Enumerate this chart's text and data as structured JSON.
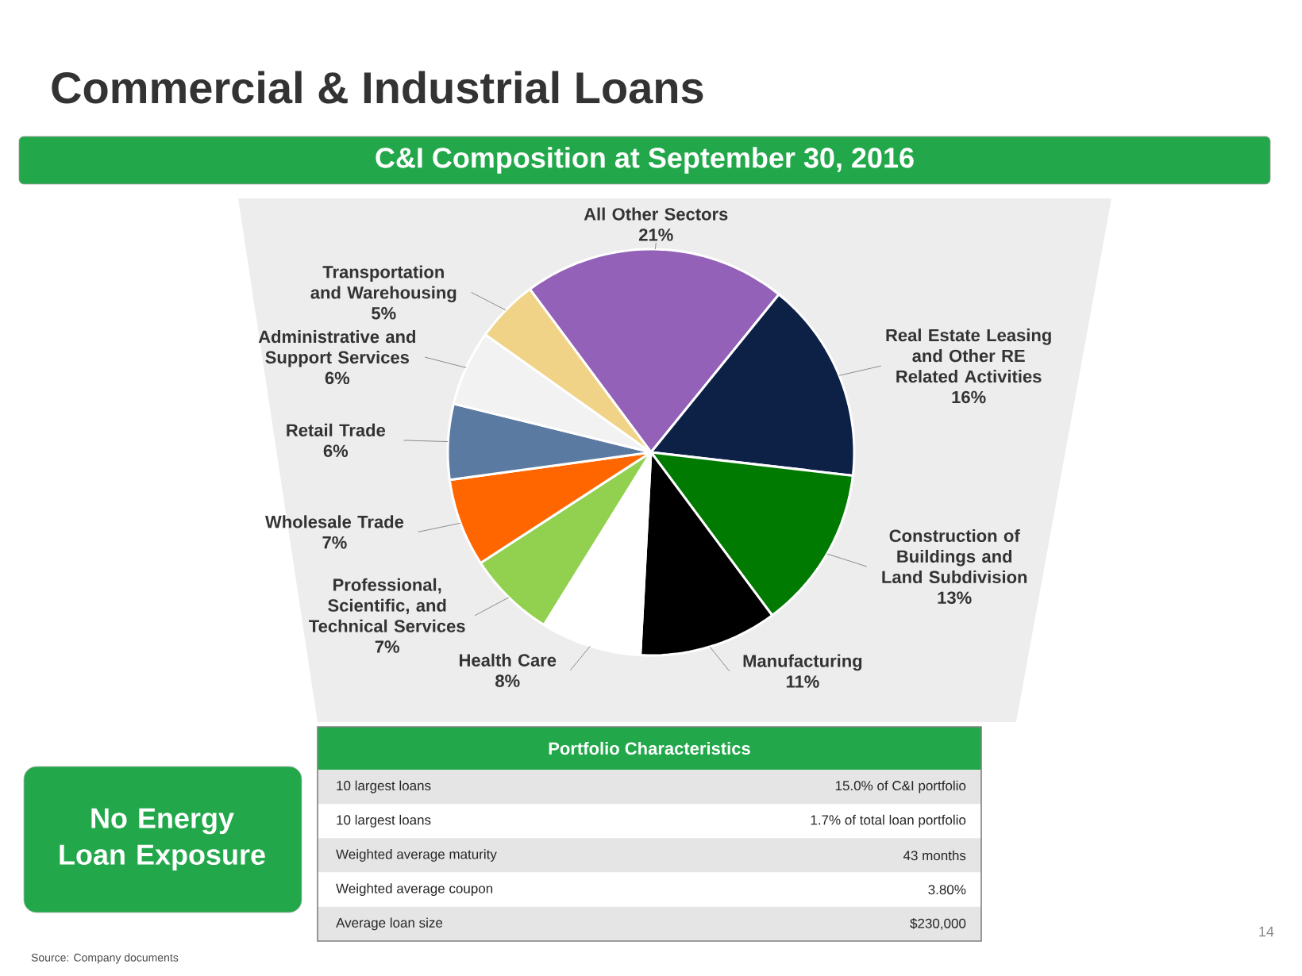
{
  "chart_data": {
    "type": "pie",
    "title": "Commercial & Industrial Loans",
    "subtitle": "C&I Composition at September 30, 2016",
    "categories": [
      "All Other Sectors",
      "Real Estate Leasing and Other RE Related Activities",
      "Construction of Buildings and Land Subdivision",
      "Manufacturing",
      "Health Care",
      "Professional, Scientific, and Technical Services",
      "Wholesale Trade",
      "Retail Trade",
      "Administrative and Support Services",
      "Transportation and Warehousing"
    ],
    "values": [
      21,
      16,
      13,
      11,
      8,
      7,
      7,
      6,
      6,
      5
    ],
    "value_labels": [
      "21%",
      "16%",
      "13%",
      "11%",
      "8%",
      "7%",
      "7%",
      "6%",
      "6%",
      "5%"
    ],
    "colors": [
      "#9461b8",
      "#0d2147",
      "#007a00",
      "#000000",
      "#ffffff",
      "#92d050",
      "#ff6600",
      "#5b7aa2",
      "#f2f2f2",
      "#f0d387"
    ],
    "annotations": [
      "Source: Company documents",
      "14",
      "No Energy Loan Exposure",
      "Portfolio Characteristics",
      "10 largest loans",
      "15.0% of C&I portfolio",
      "10 largest loans",
      "1.7% of total loan portfolio",
      "Weighted average maturity",
      "43 months",
      "Weighted average coupon",
      "3.80%",
      "Average loan size",
      "$230,000"
    ]
  }
}
